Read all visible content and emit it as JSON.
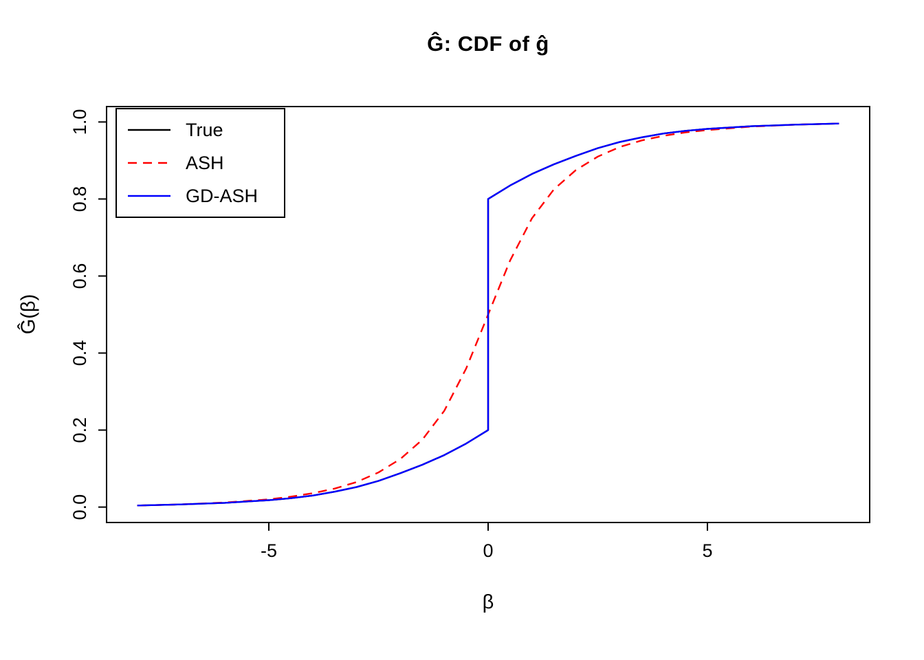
{
  "figure": {
    "background": "#ffffff",
    "frame_color": "#000000"
  },
  "chart_data": {
    "type": "line",
    "title": "Ĝ: CDF of ĝ",
    "xlabel": "β",
    "ylabel": "Ĝ(β)",
    "xlim": [
      -8.7,
      8.7
    ],
    "ylim": [
      -0.04,
      1.04
    ],
    "grid": false,
    "x_ticks": [
      -5,
      0,
      5
    ],
    "x_tick_labels": [
      "-5",
      "0",
      "5"
    ],
    "y_ticks": [
      0.0,
      0.2,
      0.4,
      0.6,
      0.8,
      1.0
    ],
    "y_tick_labels": [
      "0.0",
      "0.2",
      "0.4",
      "0.6",
      "0.8",
      "1.0"
    ],
    "legend": {
      "position": "top-left",
      "entries": [
        "True",
        "ASH",
        "GD-ASH"
      ]
    },
    "series": [
      {
        "name": "True",
        "color": "#000000",
        "dash": "solid",
        "x": [
          -8,
          -7,
          -6,
          -5,
          -4.5,
          -4,
          -3.5,
          -3,
          -2.5,
          -2,
          -1.5,
          -1,
          -0.5,
          0,
          0,
          0.5,
          1,
          1.5,
          2,
          2.5,
          3,
          3.5,
          4,
          4.5,
          5,
          6,
          7,
          8
        ],
        "y": [
          0.004,
          0.007,
          0.011,
          0.018,
          0.023,
          0.03,
          0.04,
          0.052,
          0.068,
          0.088,
          0.11,
          0.135,
          0.165,
          0.2,
          0.8,
          0.835,
          0.865,
          0.89,
          0.912,
          0.932,
          0.948,
          0.96,
          0.97,
          0.977,
          0.982,
          0.989,
          0.993,
          0.996
        ]
      },
      {
        "name": "ASH",
        "color": "#ff0000",
        "dash": "dashed",
        "x": [
          -8,
          -7,
          -6,
          -5,
          -4.5,
          -4,
          -3.5,
          -3,
          -2.5,
          -2,
          -1.5,
          -1,
          -0.5,
          0,
          0.5,
          1,
          1.5,
          2,
          2.5,
          3,
          3.5,
          4,
          4.5,
          5,
          6,
          7,
          8
        ],
        "y": [
          0.004,
          0.007,
          0.012,
          0.02,
          0.027,
          0.036,
          0.048,
          0.065,
          0.09,
          0.125,
          0.175,
          0.25,
          0.36,
          0.5,
          0.64,
          0.75,
          0.825,
          0.875,
          0.91,
          0.935,
          0.952,
          0.964,
          0.973,
          0.979,
          0.988,
          0.993,
          0.996
        ]
      },
      {
        "name": "GD-ASH",
        "color": "#0000ff",
        "dash": "solid",
        "x": [
          -8,
          -7,
          -6,
          -5,
          -4.5,
          -4,
          -3.5,
          -3,
          -2.5,
          -2,
          -1.5,
          -1,
          -0.5,
          0,
          0,
          0.5,
          1,
          1.5,
          2,
          2.5,
          3,
          3.5,
          4,
          4.5,
          5,
          6,
          7,
          8
        ],
        "y": [
          0.004,
          0.007,
          0.011,
          0.018,
          0.023,
          0.03,
          0.04,
          0.052,
          0.068,
          0.088,
          0.11,
          0.135,
          0.165,
          0.2,
          0.8,
          0.835,
          0.865,
          0.89,
          0.912,
          0.932,
          0.948,
          0.96,
          0.97,
          0.977,
          0.982,
          0.989,
          0.993,
          0.996
        ]
      }
    ]
  }
}
